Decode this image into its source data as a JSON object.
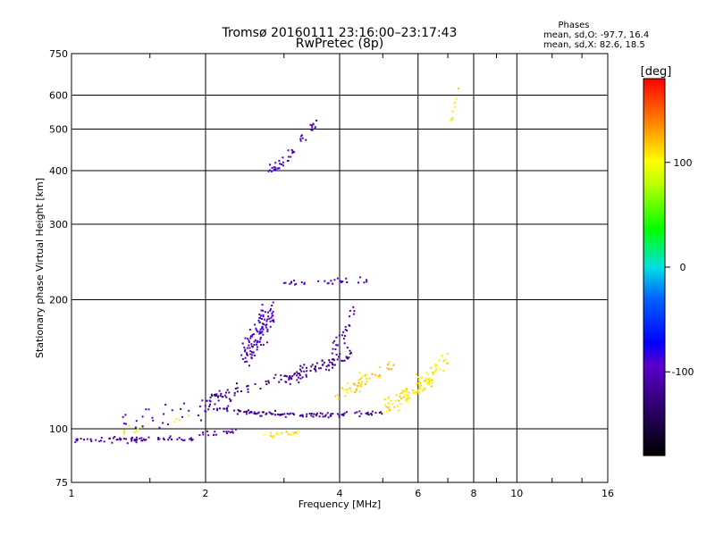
{
  "chart_data": {
    "type": "scatter",
    "title": "Tromsø 20160111 23:16:00–23:17:43",
    "subtitle": "RwPretec (8p)",
    "xlabel": "Frequency [MHz]",
    "ylabel": "Stationary phase Virtual Height [km]",
    "x_scale": "log",
    "y_scale": "log",
    "xlim": [
      1,
      16
    ],
    "ylim": [
      75,
      750
    ],
    "x_ticks": [
      1,
      2,
      4,
      6,
      8,
      10,
      16
    ],
    "x_tick_labels": [
      "1",
      "2",
      "4",
      "6",
      "8",
      "10",
      "16"
    ],
    "y_ticks": [
      75,
      100,
      200,
      300,
      400,
      500,
      600,
      750
    ],
    "y_tick_labels": [
      "75",
      "100",
      "200",
      "300",
      "400",
      "500",
      "600",
      "750"
    ],
    "grid": true,
    "stats": {
      "heading": "Phases",
      "line_o": "mean, sd,O: -97.7, 16.4",
      "line_x": "mean, sd,X:  82.6, 18.5"
    },
    "colorbar": {
      "label": "[deg]",
      "range": [
        -180,
        180
      ],
      "ticks": [
        100,
        0,
        -100
      ],
      "tick_labels": [
        "100",
        "0",
        "-100"
      ]
    },
    "series": [
      {
        "traces": [
          {
            "x0": 1.02,
            "x1": 1.9,
            "y0": 94,
            "y1": 95,
            "n": 70,
            "jy": 0.012,
            "p": -105,
            "jp": 8
          },
          {
            "x0": 1.9,
            "x1": 2.35,
            "y0": 96,
            "y1": 99,
            "n": 18,
            "jy": 0.015,
            "p": -100,
            "jp": 10
          },
          {
            "x0": 2.0,
            "x1": 5.4,
            "y0": 112,
            "y1": 110,
            "n": 110,
            "jy": 0.012,
            "p": -115,
            "jp": 12,
            "curve": 0.03
          },
          {
            "x0": 1.3,
            "x1": 2.3,
            "y0": 104,
            "y1": 118,
            "n": 40,
            "jy": 0.06,
            "p": -100,
            "jp": 15
          },
          {
            "x0": 2.0,
            "x1": 4.2,
            "y0": 118,
            "y1": 145,
            "n": 80,
            "jy": 0.03,
            "p": -120,
            "jp": 15
          },
          {
            "x0": 2.4,
            "x1": 2.85,
            "y0": 145,
            "y1": 190,
            "n": 110,
            "jy": 0.08,
            "p": -95,
            "jp": 18
          },
          {
            "x0": 3.0,
            "x1": 4.3,
            "y0": 130,
            "y1": 150,
            "n": 45,
            "jy": 0.04,
            "p": -110,
            "jp": 15
          },
          {
            "x0": 3.8,
            "x1": 4.35,
            "y0": 148,
            "y1": 190,
            "n": 25,
            "jy": 0.05,
            "p": -105,
            "jp": 15
          },
          {
            "x0": 3.0,
            "x1": 4.6,
            "y0": 218,
            "y1": 222,
            "n": 30,
            "jy": 0.015,
            "p": -100,
            "jp": 12
          },
          {
            "x0": 2.75,
            "x1": 3.0,
            "y0": 400,
            "y1": 415,
            "n": 20,
            "jy": 0.025,
            "p": -95,
            "jp": 12
          },
          {
            "x0": 3.05,
            "x1": 3.55,
            "y0": 430,
            "y1": 510,
            "n": 25,
            "jy": 0.03,
            "p": -105,
            "jp": 10
          },
          {
            "x0": 1.3,
            "x1": 1.9,
            "y0": 100,
            "y1": 106,
            "n": 12,
            "jy": 0.03,
            "p": 95,
            "jp": 15
          },
          {
            "x0": 2.7,
            "x1": 3.25,
            "y0": 96,
            "y1": 98,
            "n": 18,
            "jy": 0.015,
            "p": 110,
            "jp": 10
          },
          {
            "x0": 3.9,
            "x1": 4.6,
            "y0": 120,
            "y1": 128,
            "n": 25,
            "jy": 0.03,
            "p": 110,
            "jp": 12
          },
          {
            "x0": 4.3,
            "x1": 5.3,
            "y0": 128,
            "y1": 140,
            "n": 25,
            "jy": 0.04,
            "p": 115,
            "jp": 12
          },
          {
            "x0": 5.0,
            "x1": 6.5,
            "y0": 112,
            "y1": 130,
            "n": 70,
            "jy": 0.04,
            "p": 110,
            "jp": 14
          },
          {
            "x0": 5.9,
            "x1": 7.0,
            "y0": 125,
            "y1": 145,
            "n": 35,
            "jy": 0.05,
            "p": 105,
            "jp": 14
          },
          {
            "x0": 7.1,
            "x1": 7.4,
            "y0": 520,
            "y1": 620,
            "n": 8,
            "jy": 0.04,
            "p": 100,
            "jp": 20
          }
        ]
      }
    ]
  }
}
